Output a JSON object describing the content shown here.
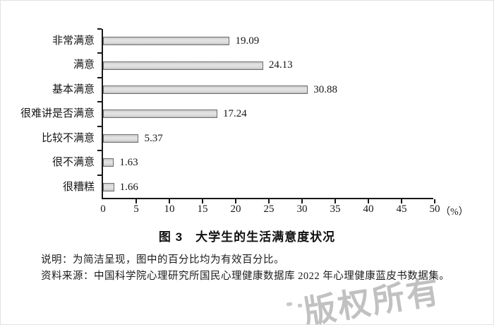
{
  "chart_data": {
    "type": "bar",
    "orientation": "horizontal",
    "title": "图 3　大学生的生活满意度状况",
    "categories": [
      "非常满意",
      "满意",
      "基本满意",
      "很难讲是否满意",
      "比较不满意",
      "很不满意",
      "很糟糕"
    ],
    "values": [
      19.09,
      24.13,
      30.88,
      17.24,
      5.37,
      1.63,
      1.66
    ],
    "value_labels": [
      "19.09",
      "24.13",
      "30.88",
      "17.24",
      "5.37",
      "1.63",
      "1.66"
    ],
    "xlim": [
      0,
      50
    ],
    "x_ticks": [
      0,
      5,
      10,
      15,
      20,
      25,
      30,
      35,
      40,
      45,
      50
    ],
    "x_unit_label": "（%）",
    "grid": false,
    "legend": "none",
    "bar_fill": "#d8d8d8",
    "bar_border": "#6e6e6e",
    "axis_color": "#181818"
  },
  "caption": {
    "title": "图 3　大学生的生活满意度状况"
  },
  "notes": {
    "note": "说明：为简洁呈现，图中的百分比均为有效百分比。",
    "source": "资料来源：中国科学院心理研究所国民心理健康数据库 2022 年心理健康蓝皮书数据集。"
  },
  "watermark": {
    "text": "版权所有",
    "color": "#b2b2b2"
  }
}
